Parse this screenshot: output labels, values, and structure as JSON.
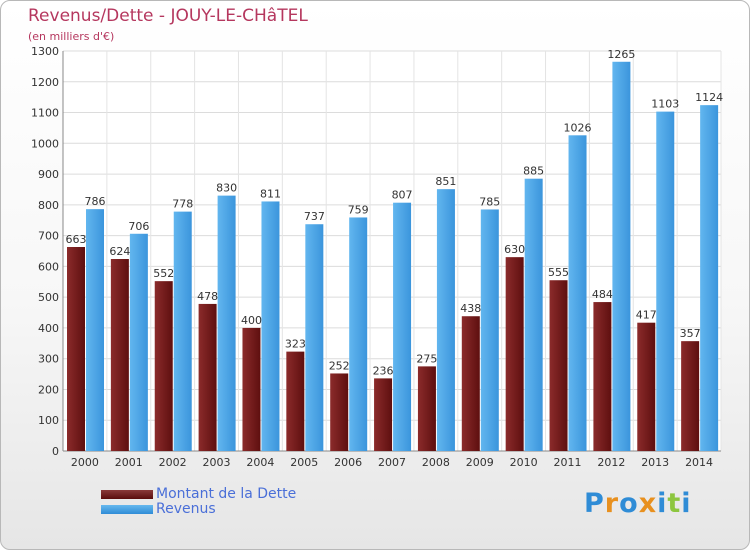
{
  "chart_data": {
    "type": "bar",
    "title": "Revenus/Dette - JOUY-LE-CHâTEL",
    "subtitle": "(en milliers d'€)",
    "categories": [
      "2000",
      "2001",
      "2002",
      "2003",
      "2004",
      "2005",
      "2006",
      "2007",
      "2008",
      "2009",
      "2010",
      "2011",
      "2012",
      "2013",
      "2014"
    ],
    "series": [
      {
        "name": "Montant de la Dette",
        "color": "#7a1f1f",
        "values": [
          663,
          624,
          552,
          478,
          400,
          323,
          252,
          236,
          275,
          438,
          630,
          555,
          484,
          417,
          357
        ]
      },
      {
        "name": "Revenus",
        "color": "#4aa3e6",
        "values": [
          786,
          706,
          778,
          830,
          811,
          737,
          759,
          807,
          851,
          785,
          885,
          1026,
          1265,
          1103,
          1124
        ]
      }
    ],
    "ylim": [
      0,
      1300
    ],
    "yticks": [
      0,
      100,
      200,
      300,
      400,
      500,
      600,
      700,
      800,
      900,
      1000,
      1100,
      1200,
      1300
    ],
    "grid": true,
    "legend": "bottom-left"
  },
  "legend": {
    "items": [
      "Montant de la Dette",
      "Revenus"
    ]
  },
  "brand": {
    "text": "Proxiti",
    "letters": [
      "P",
      "r",
      "o",
      "x",
      "i",
      "t",
      "i"
    ],
    "colors": [
      "#2f8cd6",
      "#e8901e",
      "#2f8cd6",
      "#e8901e",
      "#2f8cd6",
      "#8dc63f",
      "#2f8cd6"
    ]
  }
}
